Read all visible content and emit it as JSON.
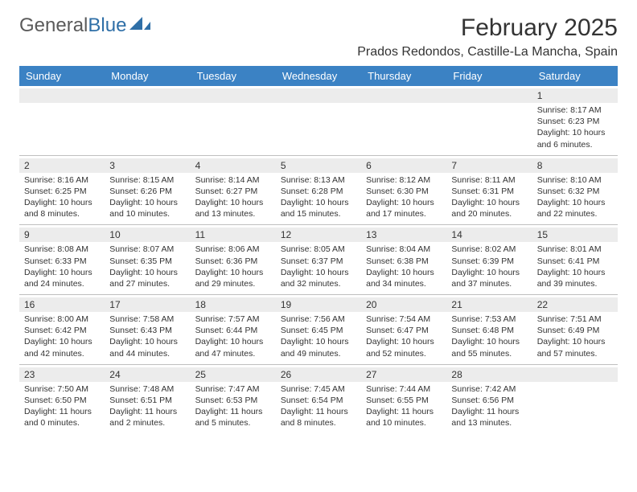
{
  "logo": {
    "text_general": "General",
    "text_blue": "Blue"
  },
  "title": "February 2025",
  "location": "Prados Redondos, Castille-La Mancha, Spain",
  "colors": {
    "header_bg": "#3b82c4",
    "header_text": "#ffffff",
    "daynum_bg": "#ececec",
    "border": "#bfbfbf",
    "text": "#333333",
    "logo_gray": "#5a5a5a",
    "logo_blue": "#2f6fa7"
  },
  "day_names": [
    "Sunday",
    "Monday",
    "Tuesday",
    "Wednesday",
    "Thursday",
    "Friday",
    "Saturday"
  ],
  "weeks": [
    [
      {
        "num": "",
        "lines": []
      },
      {
        "num": "",
        "lines": []
      },
      {
        "num": "",
        "lines": []
      },
      {
        "num": "",
        "lines": []
      },
      {
        "num": "",
        "lines": []
      },
      {
        "num": "",
        "lines": []
      },
      {
        "num": "1",
        "lines": [
          "Sunrise: 8:17 AM",
          "Sunset: 6:23 PM",
          "Daylight: 10 hours and 6 minutes."
        ]
      }
    ],
    [
      {
        "num": "2",
        "lines": [
          "Sunrise: 8:16 AM",
          "Sunset: 6:25 PM",
          "Daylight: 10 hours and 8 minutes."
        ]
      },
      {
        "num": "3",
        "lines": [
          "Sunrise: 8:15 AM",
          "Sunset: 6:26 PM",
          "Daylight: 10 hours and 10 minutes."
        ]
      },
      {
        "num": "4",
        "lines": [
          "Sunrise: 8:14 AM",
          "Sunset: 6:27 PM",
          "Daylight: 10 hours and 13 minutes."
        ]
      },
      {
        "num": "5",
        "lines": [
          "Sunrise: 8:13 AM",
          "Sunset: 6:28 PM",
          "Daylight: 10 hours and 15 minutes."
        ]
      },
      {
        "num": "6",
        "lines": [
          "Sunrise: 8:12 AM",
          "Sunset: 6:30 PM",
          "Daylight: 10 hours and 17 minutes."
        ]
      },
      {
        "num": "7",
        "lines": [
          "Sunrise: 8:11 AM",
          "Sunset: 6:31 PM",
          "Daylight: 10 hours and 20 minutes."
        ]
      },
      {
        "num": "8",
        "lines": [
          "Sunrise: 8:10 AM",
          "Sunset: 6:32 PM",
          "Daylight: 10 hours and 22 minutes."
        ]
      }
    ],
    [
      {
        "num": "9",
        "lines": [
          "Sunrise: 8:08 AM",
          "Sunset: 6:33 PM",
          "Daylight: 10 hours and 24 minutes."
        ]
      },
      {
        "num": "10",
        "lines": [
          "Sunrise: 8:07 AM",
          "Sunset: 6:35 PM",
          "Daylight: 10 hours and 27 minutes."
        ]
      },
      {
        "num": "11",
        "lines": [
          "Sunrise: 8:06 AM",
          "Sunset: 6:36 PM",
          "Daylight: 10 hours and 29 minutes."
        ]
      },
      {
        "num": "12",
        "lines": [
          "Sunrise: 8:05 AM",
          "Sunset: 6:37 PM",
          "Daylight: 10 hours and 32 minutes."
        ]
      },
      {
        "num": "13",
        "lines": [
          "Sunrise: 8:04 AM",
          "Sunset: 6:38 PM",
          "Daylight: 10 hours and 34 minutes."
        ]
      },
      {
        "num": "14",
        "lines": [
          "Sunrise: 8:02 AM",
          "Sunset: 6:39 PM",
          "Daylight: 10 hours and 37 minutes."
        ]
      },
      {
        "num": "15",
        "lines": [
          "Sunrise: 8:01 AM",
          "Sunset: 6:41 PM",
          "Daylight: 10 hours and 39 minutes."
        ]
      }
    ],
    [
      {
        "num": "16",
        "lines": [
          "Sunrise: 8:00 AM",
          "Sunset: 6:42 PM",
          "Daylight: 10 hours and 42 minutes."
        ]
      },
      {
        "num": "17",
        "lines": [
          "Sunrise: 7:58 AM",
          "Sunset: 6:43 PM",
          "Daylight: 10 hours and 44 minutes."
        ]
      },
      {
        "num": "18",
        "lines": [
          "Sunrise: 7:57 AM",
          "Sunset: 6:44 PM",
          "Daylight: 10 hours and 47 minutes."
        ]
      },
      {
        "num": "19",
        "lines": [
          "Sunrise: 7:56 AM",
          "Sunset: 6:45 PM",
          "Daylight: 10 hours and 49 minutes."
        ]
      },
      {
        "num": "20",
        "lines": [
          "Sunrise: 7:54 AM",
          "Sunset: 6:47 PM",
          "Daylight: 10 hours and 52 minutes."
        ]
      },
      {
        "num": "21",
        "lines": [
          "Sunrise: 7:53 AM",
          "Sunset: 6:48 PM",
          "Daylight: 10 hours and 55 minutes."
        ]
      },
      {
        "num": "22",
        "lines": [
          "Sunrise: 7:51 AM",
          "Sunset: 6:49 PM",
          "Daylight: 10 hours and 57 minutes."
        ]
      }
    ],
    [
      {
        "num": "23",
        "lines": [
          "Sunrise: 7:50 AM",
          "Sunset: 6:50 PM",
          "Daylight: 11 hours and 0 minutes."
        ]
      },
      {
        "num": "24",
        "lines": [
          "Sunrise: 7:48 AM",
          "Sunset: 6:51 PM",
          "Daylight: 11 hours and 2 minutes."
        ]
      },
      {
        "num": "25",
        "lines": [
          "Sunrise: 7:47 AM",
          "Sunset: 6:53 PM",
          "Daylight: 11 hours and 5 minutes."
        ]
      },
      {
        "num": "26",
        "lines": [
          "Sunrise: 7:45 AM",
          "Sunset: 6:54 PM",
          "Daylight: 11 hours and 8 minutes."
        ]
      },
      {
        "num": "27",
        "lines": [
          "Sunrise: 7:44 AM",
          "Sunset: 6:55 PM",
          "Daylight: 11 hours and 10 minutes."
        ]
      },
      {
        "num": "28",
        "lines": [
          "Sunrise: 7:42 AM",
          "Sunset: 6:56 PM",
          "Daylight: 11 hours and 13 minutes."
        ]
      },
      {
        "num": "",
        "lines": []
      }
    ]
  ]
}
